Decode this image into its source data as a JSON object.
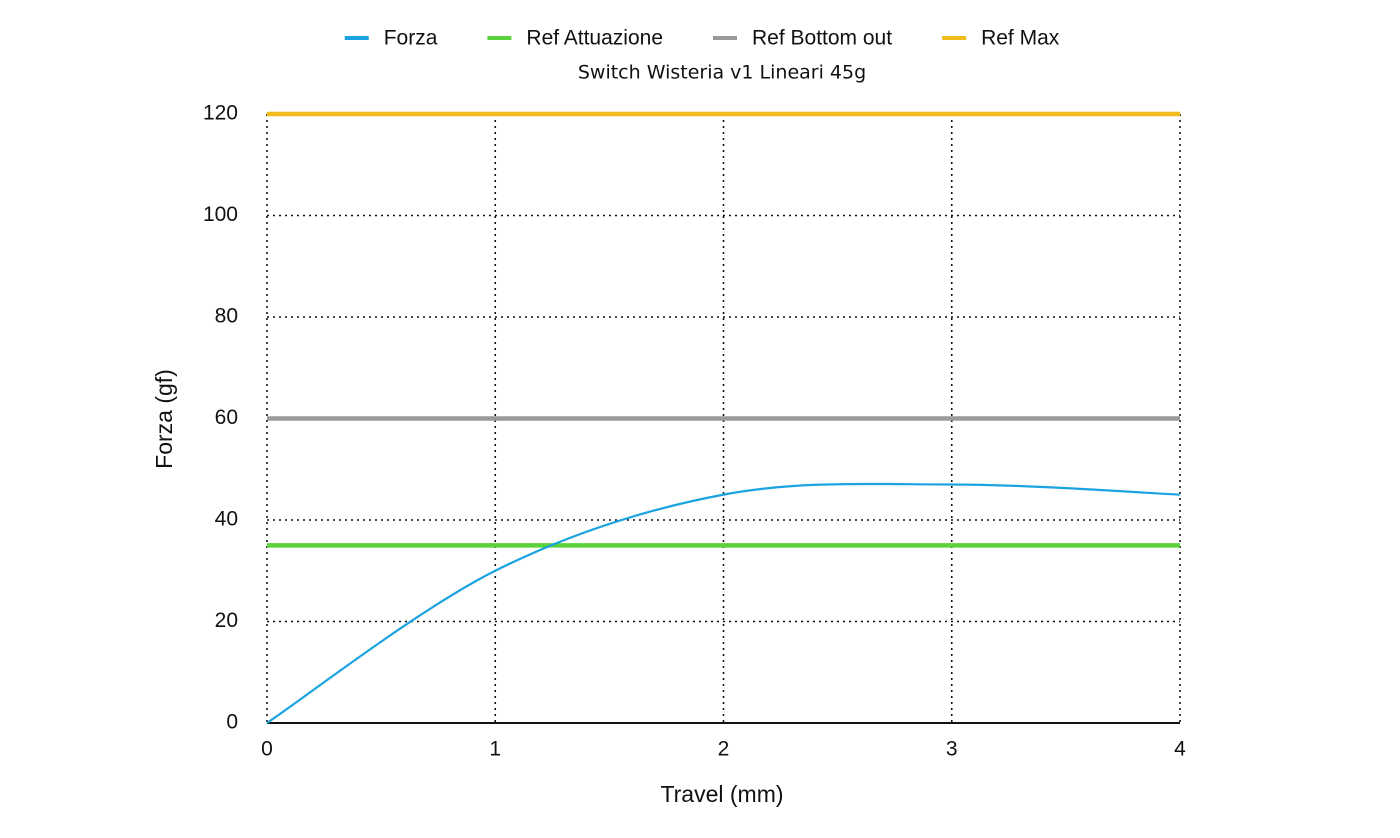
{
  "chart_data": {
    "type": "line",
    "title": "Switch Wisteria v1 Lineari 45g",
    "x_label": "Travel (mm)",
    "y_label": "Forza (gf)",
    "x": [
      0,
      1,
      2,
      3,
      4
    ],
    "series": [
      {
        "name": "Forza",
        "color": "#1aa3e0",
        "values": [
          0,
          30,
          45,
          47,
          45
        ]
      },
      {
        "name": "Ref Attuazione",
        "color": "#5ad23a",
        "values": [
          35,
          35,
          35,
          35,
          35
        ]
      },
      {
        "name": "Ref Bottom out",
        "color": "#9a9a9a",
        "values": [
          60,
          60,
          60,
          60,
          60
        ]
      },
      {
        "name": "Ref Max",
        "color": "#f0bd1e",
        "values": [
          120,
          120,
          120,
          120,
          120
        ]
      }
    ],
    "xlim": [
      0,
      4
    ],
    "xticks": [
      0,
      1,
      2,
      3,
      4
    ],
    "ylim": [
      0,
      120
    ],
    "yticks": [
      0,
      20,
      40,
      60,
      80,
      100,
      120
    ],
    "grid": true,
    "legend": "top"
  }
}
